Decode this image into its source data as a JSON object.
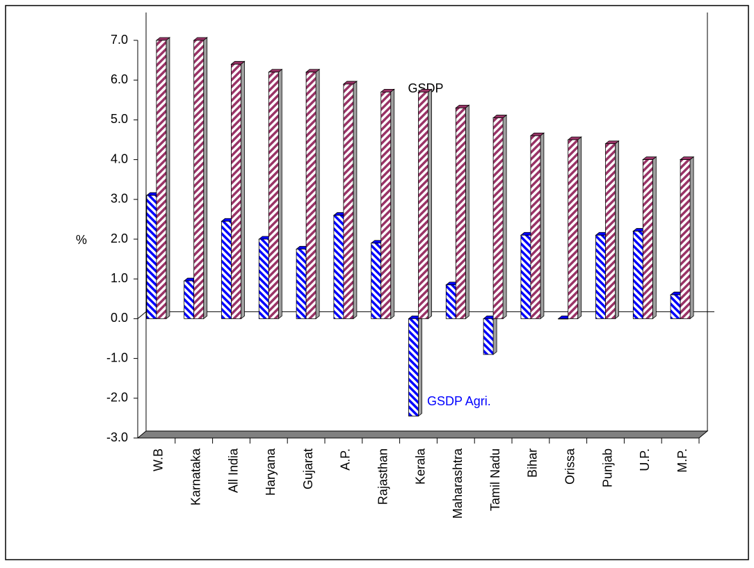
{
  "chart_data": {
    "type": "bar",
    "y_label": "%",
    "annotations": [
      "GSDP",
      "GSDP Agri."
    ],
    "categories": [
      "W.B",
      "Karnataka",
      "All India",
      "Haryana",
      "Gujarat",
      "A.P.",
      "Rajasthan",
      "Kerala",
      "Maharashtra",
      "Tamil Nadu",
      "Bihar",
      "Orissa",
      "Punjab",
      "U.P.",
      "M.P."
    ],
    "series": [
      {
        "name": "GSDP Agri.",
        "color": "#0000ff",
        "values": [
          3.1,
          0.95,
          2.45,
          2.0,
          1.75,
          2.6,
          1.9,
          -2.45,
          0.85,
          -0.9,
          2.1,
          0.0,
          2.1,
          2.2,
          0.6
        ]
      },
      {
        "name": "GSDP",
        "color": "#993366",
        "values": [
          7.0,
          7.0,
          6.4,
          6.2,
          6.2,
          5.9,
          5.7,
          5.7,
          5.3,
          5.05,
          4.6,
          4.5,
          4.4,
          4.0,
          4.0
        ]
      }
    ],
    "ylim": [
      -3,
      7
    ],
    "yticks": [
      {
        "value": -3,
        "label": "-3.0"
      },
      {
        "value": -2,
        "label": "-2.0"
      },
      {
        "value": -1,
        "label": "-1.0"
      },
      {
        "value": 0,
        "label": "0.0"
      },
      {
        "value": 1,
        "label": "1.0"
      },
      {
        "value": 2,
        "label": "2.0"
      },
      {
        "value": 3,
        "label": "3.0"
      },
      {
        "value": 4,
        "label": "4.0"
      },
      {
        "value": 5,
        "label": "5.0"
      },
      {
        "value": 6,
        "label": "6.0"
      },
      {
        "value": 7,
        "label": "7.0"
      }
    ]
  }
}
